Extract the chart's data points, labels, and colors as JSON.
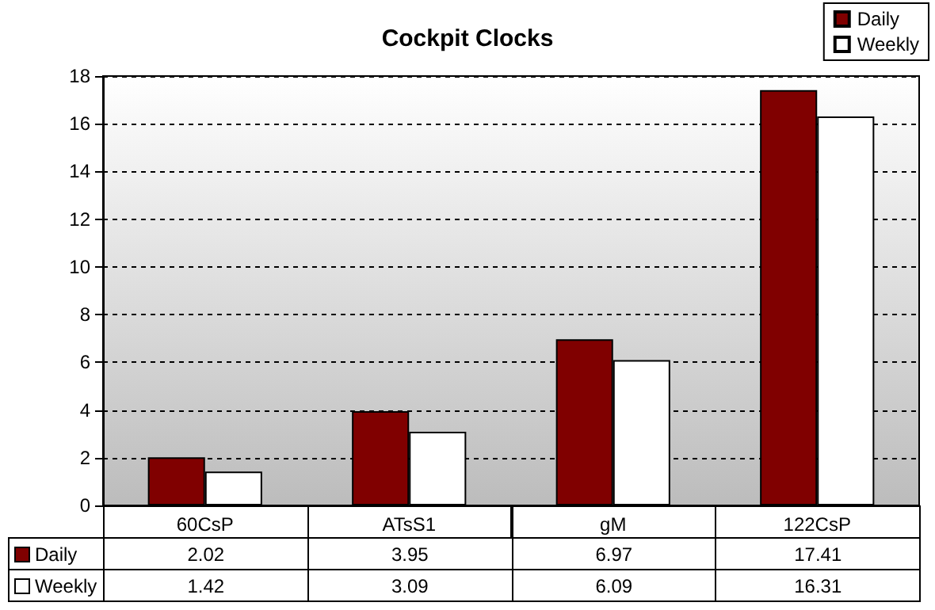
{
  "chart_data": {
    "type": "bar",
    "title": "Cockpit Clocks",
    "categories": [
      "60CsP",
      "ATsS1",
      "gM",
      "122CsP"
    ],
    "series": [
      {
        "name": "Daily",
        "color": "#800000",
        "values": [
          2.02,
          3.95,
          6.97,
          17.41
        ]
      },
      {
        "name": "Weekly",
        "color": "#ffffff",
        "values": [
          1.42,
          3.09,
          6.09,
          16.31
        ]
      }
    ],
    "ylim": [
      0,
      18
    ],
    "yticks": [
      0,
      2,
      4,
      6,
      8,
      10,
      12,
      14,
      16,
      18
    ],
    "grid": "y",
    "legend": "top right",
    "data_labels": true
  }
}
